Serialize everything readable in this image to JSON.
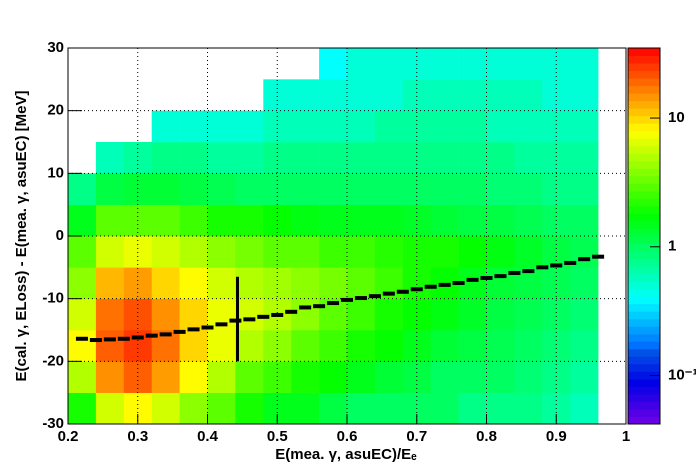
{
  "chart_data": {
    "type": "heatmap",
    "x_label": "E(mea. γ, asuEC)/Eₑ",
    "y_label": "E(cal. γ, ELoss) - E(mea.  γ, asuEC) [MeV]",
    "xlim": [
      0.2,
      1
    ],
    "ylim": [
      -30,
      30
    ],
    "xticks": [
      0.2,
      0.3,
      0.4,
      0.5,
      0.6,
      0.7,
      0.8,
      0.9,
      1
    ],
    "yticks": [
      -30,
      -20,
      -10,
      0,
      10,
      20,
      30
    ],
    "grid": true,
    "zscale": "log",
    "zlim": [
      0.042,
      35
    ],
    "zticks": [
      {
        "value": 0.1,
        "label": "10⁻¹"
      },
      1,
      10
    ],
    "x_bins": [
      0.2,
      0.24,
      0.28,
      0.32,
      0.36,
      0.4,
      0.44,
      0.48,
      0.52,
      0.56,
      0.6,
      0.64,
      0.68,
      0.72,
      0.76,
      0.8,
      0.84,
      0.88,
      0.92,
      0.96
    ],
    "y_bins": [
      -30,
      -25,
      -20,
      -15,
      -10,
      -5,
      0,
      5,
      10,
      15,
      20,
      25,
      30
    ],
    "z": [
      [
        2,
        6,
        8,
        6,
        4,
        3,
        2,
        1.5,
        1.5,
        1.2,
        1,
        1,
        1,
        1,
        0.8,
        0.8,
        0.8,
        0.7,
        0.6
      ],
      [
        5,
        15,
        20,
        14,
        8,
        5,
        3,
        2.5,
        2,
        1.8,
        1.5,
        1.3,
        1.2,
        1,
        1,
        1,
        0.9,
        0.8,
        0.7
      ],
      [
        8,
        20,
        25,
        18,
        10,
        7,
        5,
        4,
        3,
        2.5,
        2,
        1.8,
        1.5,
        1.3,
        1.2,
        1.1,
        1,
        0.9,
        0.8
      ],
      [
        6,
        18,
        22,
        15,
        10,
        7,
        6,
        5,
        4,
        3,
        2.5,
        2,
        1.8,
        1.6,
        1.4,
        1.2,
        1.1,
        1,
        0.9
      ],
      [
        4,
        12,
        14,
        10,
        8,
        6,
        5,
        4.5,
        4,
        3.5,
        3,
        2.5,
        2,
        1.8,
        1.5,
        1.3,
        1.2,
        1.1,
        1
      ],
      [
        3,
        6,
        7,
        6,
        5,
        4,
        3.5,
        3,
        3,
        2.5,
        2.5,
        2.2,
        2,
        2,
        1.8,
        1.6,
        1.4,
        1.2,
        1.1
      ],
      [
        1.5,
        3,
        3,
        3,
        2.5,
        2,
        2,
        1.8,
        1.6,
        1.5,
        1.5,
        1.5,
        1.4,
        1.3,
        1.2,
        1.2,
        1.1,
        1,
        1
      ],
      [
        0.8,
        1.2,
        1.3,
        1.3,
        1.2,
        1.1,
        1,
        1,
        1,
        1,
        1,
        1,
        1,
        1,
        1,
        0.9,
        0.9,
        0.8,
        0.8
      ],
      [
        0,
        0.6,
        0.7,
        0.8,
        0.8,
        0.7,
        0.7,
        0.8,
        0.8,
        0.8,
        0.8,
        0.8,
        0.8,
        0.8,
        0.8,
        0.8,
        0.7,
        0.7,
        0.7
      ],
      [
        0,
        0,
        0,
        0.5,
        0.5,
        0.5,
        0.5,
        0.6,
        0.6,
        0.6,
        0.6,
        0.7,
        0.7,
        0.7,
        0.7,
        0.6,
        0.6,
        0.6,
        0.6
      ],
      [
        0,
        0,
        0,
        0,
        0,
        0,
        0,
        0.5,
        0.5,
        0.5,
        0.5,
        0.5,
        0.6,
        0.6,
        0.6,
        0.6,
        0.6,
        0.5,
        0.5
      ],
      [
        0,
        0,
        0,
        0,
        0,
        0,
        0,
        0,
        0,
        0.4,
        0.5,
        0.5,
        0.5,
        0.5,
        0.5,
        0.5,
        0.5,
        0.5,
        0.5
      ]
    ],
    "profile": {
      "color": "#000000",
      "x": [
        0.22,
        0.24,
        0.26,
        0.28,
        0.3,
        0.32,
        0.34,
        0.36,
        0.38,
        0.4,
        0.42,
        0.44,
        0.46,
        0.48,
        0.5,
        0.52,
        0.54,
        0.56,
        0.58,
        0.6,
        0.62,
        0.64,
        0.66,
        0.68,
        0.7,
        0.72,
        0.74,
        0.76,
        0.78,
        0.8,
        0.82,
        0.84,
        0.86,
        0.88,
        0.9,
        0.92,
        0.94,
        0.96
      ],
      "values": [
        -16.4,
        -16.6,
        -16.5,
        -16.4,
        -16.2,
        -15.9,
        -15.7,
        -15.3,
        -14.9,
        -14.6,
        -14.1,
        -13.5,
        -13.3,
        -12.9,
        -12.6,
        -12.1,
        -11.4,
        -11.2,
        -10.7,
        -10.2,
        -9.9,
        -9.6,
        -9.2,
        -8.9,
        -8.5,
        -8.1,
        -7.8,
        -7.5,
        -7.0,
        -6.7,
        -6.4,
        -5.9,
        -5.6,
        -5.0,
        -4.7,
        -4.3,
        -3.7,
        -3.3
      ]
    },
    "error_bar": {
      "x": 0.443,
      "value": -13.25,
      "error": 6.75
    }
  }
}
